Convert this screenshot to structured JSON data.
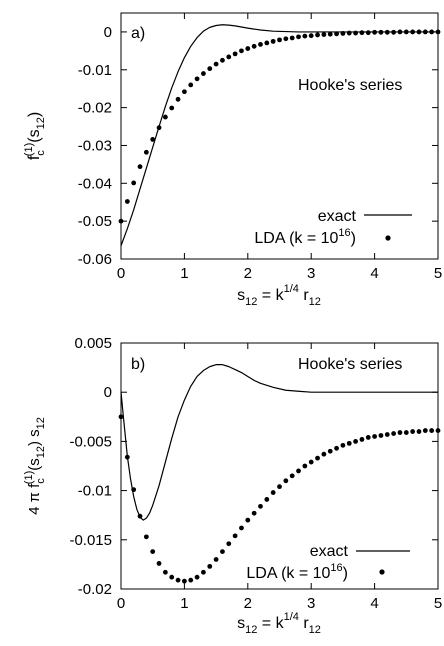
{
  "chart_data": [
    {
      "type": "line",
      "panel_label": "a)",
      "annotation": "Hooke's series",
      "ylabel": {
        "main": "f",
        "sub": "c",
        "sup": "(1)",
        "arg": "(s",
        "argsub": "12",
        "argclose": ")"
      },
      "xlabel": {
        "main": "s",
        "sub": "12",
        "eq": " = k",
        "sup": "1/4",
        "r": " r",
        "rsub": "12"
      },
      "xlim": [
        0,
        5
      ],
      "ylim": [
        -0.06,
        0.005
      ],
      "xticks": [
        0,
        1,
        2,
        3,
        4,
        5
      ],
      "xtick_labels": [
        "0",
        "1",
        "2",
        "3",
        "4",
        "5"
      ],
      "yticks": [
        0,
        -0.01,
        -0.02,
        -0.03,
        -0.04,
        -0.05,
        -0.06
      ],
      "ytick_labels": [
        "0",
        "-0.01",
        "-0.02",
        "-0.03",
        "-0.04",
        "-0.05",
        "-0.06"
      ],
      "legend": {
        "position": "bottom-right",
        "exact": "exact",
        "lda": "LDA (k = 10",
        "lda_sup": "16",
        "lda_close": ")"
      },
      "series": [
        {
          "name": "exact",
          "style": "line",
          "x": [
            0,
            0.1,
            0.2,
            0.3,
            0.4,
            0.5,
            0.6,
            0.7,
            0.8,
            0.9,
            1.0,
            1.1,
            1.2,
            1.3,
            1.4,
            1.5,
            1.6,
            1.7,
            1.8,
            1.9,
            2.0,
            2.2,
            2.4,
            2.6,
            2.8,
            3.0,
            3.5,
            4.0,
            5.0
          ],
          "y": [
            -0.0565,
            -0.052,
            -0.047,
            -0.0415,
            -0.036,
            -0.0305,
            -0.025,
            -0.0197,
            -0.0148,
            -0.0105,
            -0.0068,
            -0.0038,
            -0.0015,
            0.0002,
            0.0012,
            0.0017,
            0.0019,
            0.0018,
            0.0016,
            0.0013,
            0.001,
            0.0005,
            0.0002,
            0.0001,
            0.0,
            0.0,
            0.0,
            0.0,
            0.0
          ]
        },
        {
          "name": "LDA (k = 10^16)",
          "style": "points",
          "x": [
            0.0,
            0.1,
            0.2,
            0.3,
            0.4,
            0.5,
            0.6,
            0.7,
            0.8,
            0.9,
            1.0,
            1.1,
            1.2,
            1.3,
            1.4,
            1.5,
            1.6,
            1.7,
            1.8,
            1.9,
            2.0,
            2.1,
            2.2,
            2.3,
            2.4,
            2.5,
            2.6,
            2.7,
            2.8,
            2.9,
            3.0,
            3.1,
            3.2,
            3.3,
            3.4,
            3.5,
            3.6,
            3.7,
            3.8,
            3.9,
            4.0,
            4.1,
            4.2,
            4.3,
            4.4,
            4.5,
            4.6,
            4.7,
            4.8,
            4.9,
            5.0
          ],
          "y": [
            -0.05,
            -0.0448,
            -0.0399,
            -0.0356,
            -0.0318,
            -0.0284,
            -0.0253,
            -0.0225,
            -0.0201,
            -0.0178,
            -0.0158,
            -0.014,
            -0.0124,
            -0.011,
            -0.0097,
            -0.0085,
            -0.0075,
            -0.0066,
            -0.0058,
            -0.005,
            -0.0044,
            -0.0038,
            -0.0033,
            -0.0029,
            -0.0025,
            -0.0021,
            -0.0018,
            -0.0016,
            -0.0013,
            -0.0011,
            -0.001,
            -0.0008,
            -0.0007,
            -0.0006,
            -0.0005,
            -0.0004,
            -0.0003,
            -0.0003,
            -0.0002,
            -0.0002,
            -0.0001,
            -0.0001,
            -0.0001,
            -0.0001,
            0.0,
            0.0,
            0.0,
            0.0,
            0.0,
            0.0,
            0.0
          ]
        }
      ]
    },
    {
      "type": "line",
      "panel_label": "b)",
      "annotation": "Hooke's series",
      "ylabel": {
        "pre": "4 π f",
        "sub": "c",
        "sup": "(1)",
        "arg": "(s",
        "argsub": "12",
        "argclose": ") s",
        "tailsub": "12"
      },
      "xlabel": {
        "main": "s",
        "sub": "12",
        "eq": " = k",
        "sup": "1/4",
        "r": " r",
        "rsub": "12"
      },
      "xlim": [
        0,
        5
      ],
      "ylim": [
        -0.02,
        0.005
      ],
      "xticks": [
        0,
        1,
        2,
        3,
        4,
        5
      ],
      "xtick_labels": [
        "0",
        "1",
        "2",
        "3",
        "4",
        "5"
      ],
      "yticks": [
        0.005,
        0,
        -0.005,
        -0.01,
        -0.015,
        -0.02
      ],
      "ytick_labels": [
        "0.005",
        "0",
        "-0.005",
        "-0.01",
        "-0.015",
        "-0.02"
      ],
      "legend": {
        "position": "bottom-right",
        "exact": "exact",
        "lda": "LDA (k = 10",
        "lda_sup": "16",
        "lda_close": ")"
      },
      "series": [
        {
          "name": "exact",
          "style": "line",
          "x": [
            0,
            0.05,
            0.1,
            0.15,
            0.2,
            0.25,
            0.3,
            0.35,
            0.4,
            0.45,
            0.5,
            0.6,
            0.7,
            0.8,
            0.9,
            1.0,
            1.1,
            1.2,
            1.3,
            1.4,
            1.5,
            1.6,
            1.7,
            1.8,
            1.9,
            2.0,
            2.1,
            2.2,
            2.4,
            2.6,
            2.8,
            3.0,
            3.2,
            3.5,
            4.0,
            5.0
          ],
          "y": [
            0,
            -0.0033,
            -0.0065,
            -0.0088,
            -0.0106,
            -0.0119,
            -0.0127,
            -0.013,
            -0.0128,
            -0.0123,
            -0.0115,
            -0.0095,
            -0.0071,
            -0.0047,
            -0.0025,
            -0.0008,
            0.0006,
            0.0016,
            0.0022,
            0.0026,
            0.0028,
            0.0028,
            0.0026,
            0.0023,
            0.002,
            0.0016,
            0.0012,
            0.0009,
            0.0005,
            0.0002,
            0.0001,
            0.0,
            0.0,
            0.0,
            0.0,
            0.0
          ]
        },
        {
          "name": "LDA (k = 10^16)",
          "style": "points",
          "x": [
            0.0,
            0.1,
            0.2,
            0.3,
            0.4,
            0.5,
            0.6,
            0.7,
            0.8,
            0.9,
            1.0,
            1.1,
            1.2,
            1.3,
            1.4,
            1.5,
            1.6,
            1.7,
            1.8,
            1.9,
            2.0,
            2.1,
            2.2,
            2.3,
            2.4,
            2.5,
            2.6,
            2.7,
            2.8,
            2.9,
            3.0,
            3.1,
            3.2,
            3.3,
            3.4,
            3.5,
            3.6,
            3.7,
            3.8,
            3.9,
            4.0,
            4.1,
            4.2,
            4.3,
            4.4,
            4.5,
            4.6,
            4.7,
            4.8,
            4.9,
            5.0
          ],
          "y": [
            -0.0025,
            -0.0066,
            -0.0099,
            -0.0126,
            -0.0147,
            -0.0162,
            -0.0174,
            -0.0183,
            -0.0188,
            -0.0191,
            -0.0192,
            -0.0191,
            -0.0188,
            -0.0183,
            -0.0177,
            -0.017,
            -0.0162,
            -0.0154,
            -0.0146,
            -0.0138,
            -0.013,
            -0.0123,
            -0.0116,
            -0.0109,
            -0.0102,
            -0.0096,
            -0.009,
            -0.0085,
            -0.008,
            -0.0075,
            -0.0071,
            -0.0067,
            -0.0063,
            -0.006,
            -0.0057,
            -0.0054,
            -0.0052,
            -0.005,
            -0.0048,
            -0.0046,
            -0.0045,
            -0.0044,
            -0.0043,
            -0.0042,
            -0.0041,
            -0.0041,
            -0.004,
            -0.004,
            -0.0039,
            -0.0039,
            -0.0039
          ]
        }
      ]
    }
  ]
}
